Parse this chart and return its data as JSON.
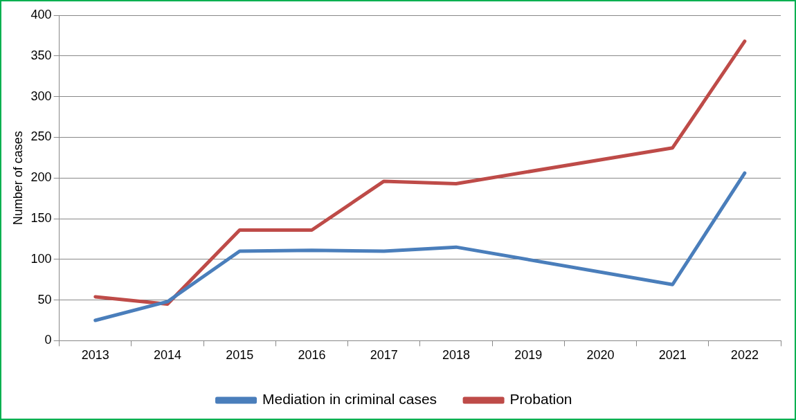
{
  "chart_data": {
    "type": "line",
    "ylabel": "Number of cases",
    "categories": [
      "2013",
      "2014",
      "2015",
      "2016",
      "2017",
      "2018",
      "2019",
      "2020",
      "2021",
      "2022"
    ],
    "series": [
      {
        "name": "Mediation in criminal cases",
        "color": "#4a7ebb",
        "values": [
          25,
          48,
          110,
          111,
          110,
          115,
          null,
          null,
          69,
          206
        ]
      },
      {
        "name": "Probation",
        "color": "#be4b48",
        "values": [
          54,
          45,
          136,
          136,
          196,
          193,
          null,
          null,
          237,
          368
        ]
      }
    ],
    "ylim": [
      0,
      400
    ],
    "yticks": [
      0,
      50,
      100,
      150,
      200,
      250,
      300,
      350,
      400
    ],
    "grid": "y",
    "legend": "bottom",
    "marker": "none",
    "line_style": "solid"
  }
}
